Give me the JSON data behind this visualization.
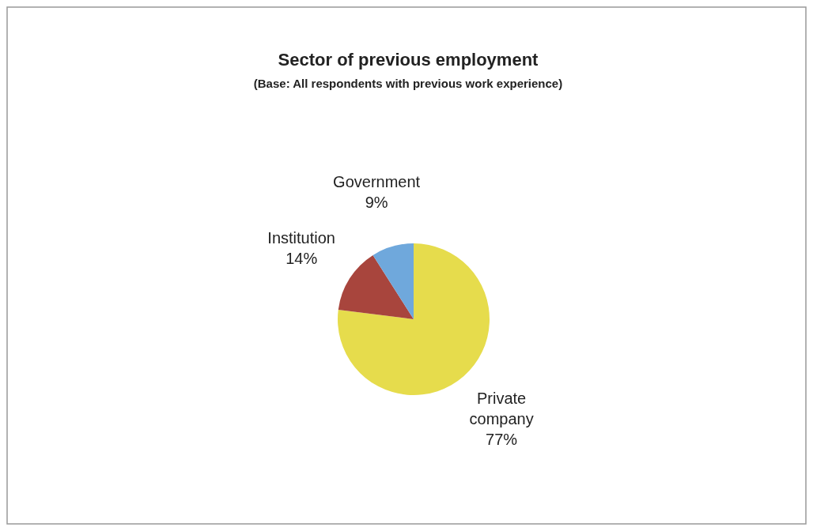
{
  "chart_data": {
    "type": "pie",
    "title": "Sector of previous employment",
    "subtitle": "(Base: All respondents with previous work experience)",
    "categories": [
      "Private company",
      "Institution",
      "Government"
    ],
    "values": [
      77,
      14,
      9
    ],
    "colors": [
      "#e6dc4c",
      "#a8453d",
      "#6fa8dc"
    ],
    "value_labels": [
      "77%",
      "14%",
      "9%"
    ]
  }
}
